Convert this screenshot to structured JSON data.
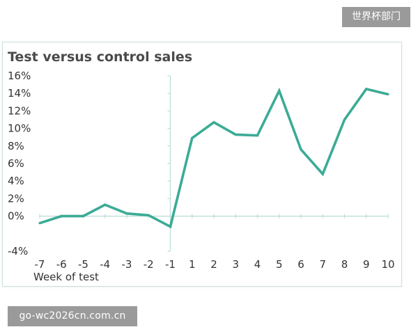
{
  "watermarks": {
    "top": "世界杯部门",
    "bottom": "go-wc2026cn.com.cn"
  },
  "colors": {
    "line": "#3bab95",
    "axis": "#b9ddd5",
    "text": "#333333",
    "title": "#4a4a4a",
    "frame": "#c9e2dc"
  },
  "chart_data": {
    "type": "line",
    "title": "Test versus control sales",
    "xlabel": "Week of test",
    "ylabel": "",
    "x": [
      -7,
      -6,
      -5,
      -4,
      -3,
      -2,
      -1,
      1,
      2,
      3,
      4,
      5,
      6,
      7,
      8,
      9,
      10
    ],
    "x_tick_labels": [
      "-7",
      "-6",
      "-5",
      "-4",
      "-3",
      "-2",
      "-1",
      "1",
      "2",
      "3",
      "4",
      "5",
      "6",
      "7",
      "8",
      "9",
      "10"
    ],
    "series": [
      {
        "values": [
          -0.8,
          0.0,
          0.0,
          1.3,
          0.3,
          0.1,
          -1.2,
          8.9,
          10.7,
          9.3,
          9.2,
          14.3,
          7.6,
          4.8,
          11.0,
          14.5,
          13.9
        ]
      }
    ],
    "ylim": [
      -4,
      16
    ],
    "y_ticks": [
      16,
      14,
      12,
      10,
      8,
      6,
      4,
      2,
      0,
      -4
    ],
    "y_tick_labels": [
      "16%",
      "14%",
      "12%",
      "10%",
      "8%",
      "6%",
      "4%",
      "2%",
      "0%",
      "-4%"
    ],
    "grid": false,
    "legend": "none"
  }
}
